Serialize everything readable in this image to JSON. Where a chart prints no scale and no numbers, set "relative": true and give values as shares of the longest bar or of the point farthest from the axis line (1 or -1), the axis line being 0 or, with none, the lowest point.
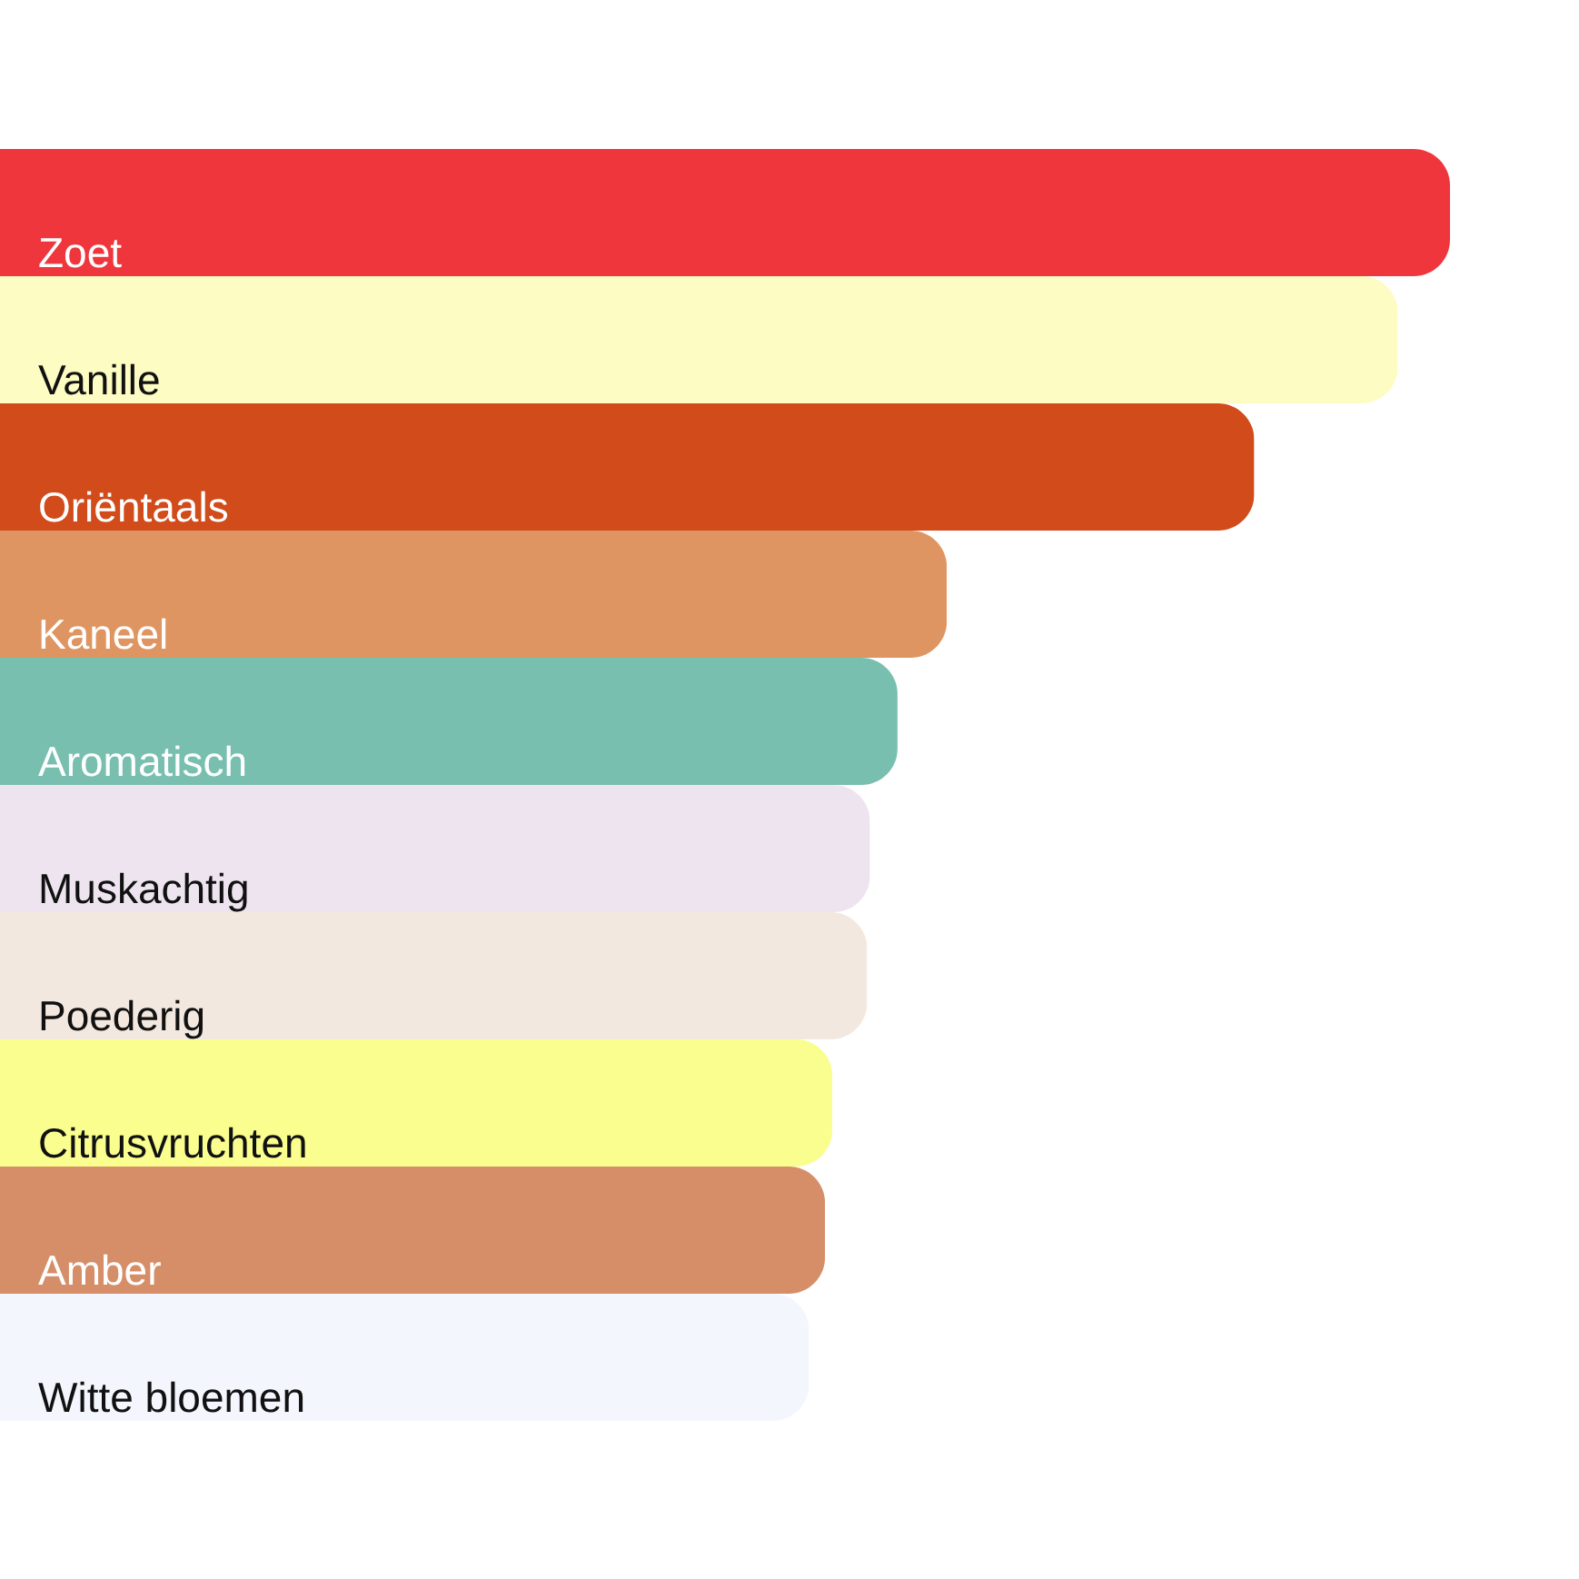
{
  "chart_data": {
    "type": "bar",
    "orientation": "horizontal",
    "relative": true,
    "categories": [
      "Zoet",
      "Vanille",
      "Oriëntaals",
      "Kaneel",
      "Aromatisch",
      "Muskachtig",
      "Poederig",
      "Citrusvruchten",
      "Amber",
      "Witte bloemen"
    ],
    "values": [
      1,
      0.964,
      0.865,
      0.653,
      0.619,
      0.6,
      0.598,
      0.574,
      0.569,
      0.558
    ],
    "colors": [
      "#ef363d",
      "#fdfcc2",
      "#d14b1b",
      "#df9562",
      "#78bfb0",
      "#eee4f0",
      "#f3e8df",
      "#fafe8e",
      "#d58e68",
      "#f3f6fd"
    ]
  }
}
